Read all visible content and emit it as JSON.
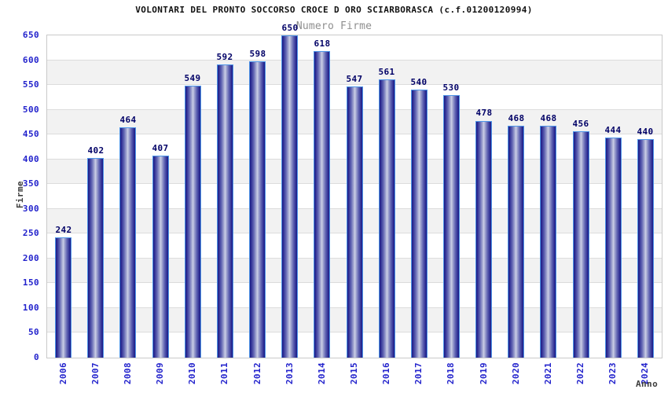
{
  "chart_data": {
    "type": "bar",
    "title": "VOLONTARI DEL PRONTO SOCCORSO CROCE D ORO SCIARBORASCA (c.f.01200120994)",
    "subtitle": "Numero Firme",
    "xlabel": "Anno",
    "ylabel": "Firme",
    "categories": [
      "2006",
      "2007",
      "2008",
      "2009",
      "2010",
      "2011",
      "2012",
      "2013",
      "2014",
      "2015",
      "2016",
      "2017",
      "2018",
      "2019",
      "2020",
      "2021",
      "2022",
      "2023",
      "2024"
    ],
    "values": [
      242,
      402,
      464,
      407,
      549,
      592,
      598,
      650,
      618,
      547,
      561,
      540,
      530,
      478,
      468,
      468,
      456,
      444,
      440
    ],
    "ylim": [
      0,
      650
    ],
    "ytick_step": 50,
    "grid": true,
    "legend_position": "none",
    "band_pattern": "alternating gray band on ranges 50-100,150-200,250-300,350-400,450-500,550-600",
    "colors": {
      "axis_tick_label": "#2222cc",
      "value_label": "#000066",
      "title": "#111111",
      "subtitle": "#8f8f8f",
      "axis_title": "#3d3d3d",
      "bar_dark": "#1b1b84",
      "bar_mid": "#6468b4",
      "bar_light": "#cdd1e8",
      "bar_border": "#4e95e8",
      "band_fill": "#f2f2f2",
      "gridline": "#dcdcdc",
      "plot_border": "#c9c9c9",
      "background": "#ffffff"
    }
  }
}
